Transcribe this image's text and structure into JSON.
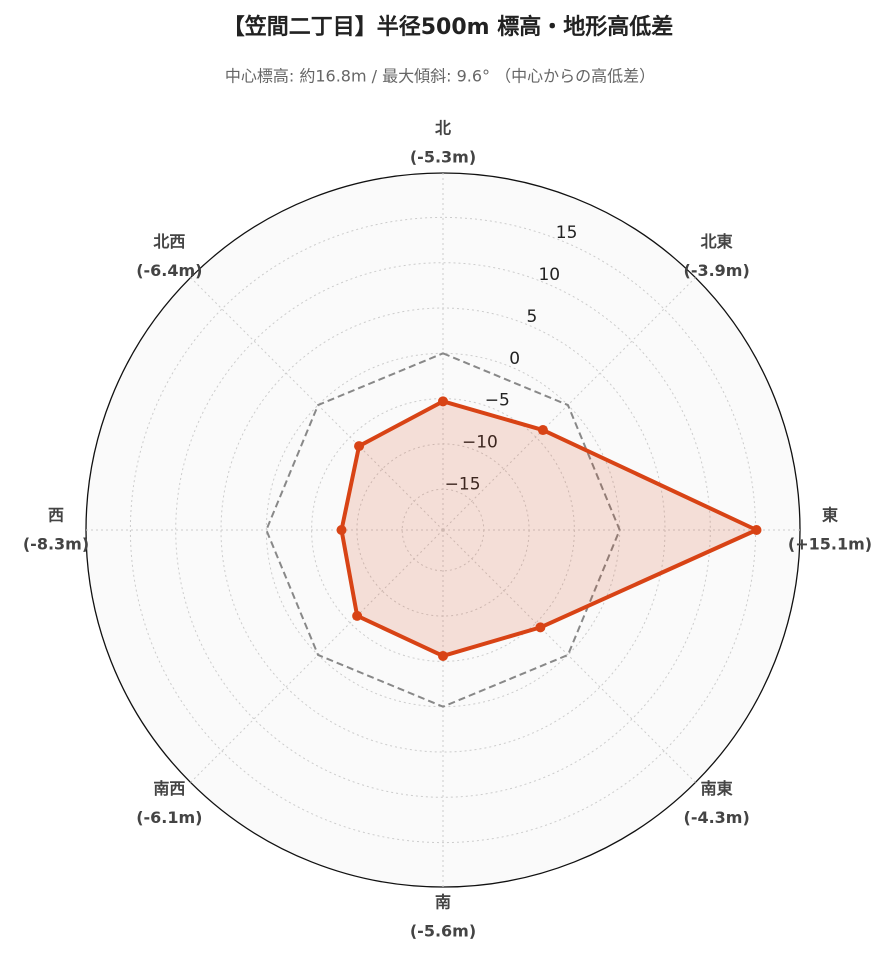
{
  "chart_data": {
    "type": "radar",
    "title": "【笠間二丁目】半径500m 標高・地形高低差",
    "subtitle": "中心標高: 約16.8m / 最大傾斜: 9.6° （中心からの高低差）",
    "categories": [
      "北",
      "北東",
      "東",
      "南東",
      "南",
      "南西",
      "西",
      "北西"
    ],
    "values": [
      -5.3,
      -3.9,
      15.1,
      -4.3,
      -5.6,
      -6.1,
      -8.3,
      -6.4
    ],
    "value_labels": [
      "(-5.3m)",
      "(-3.9m)",
      "(+15.1m)",
      "(-4.3m)",
      "(-5.6m)",
      "(-6.1m)",
      "(-8.3m)",
      "(-6.4m)"
    ],
    "color": "#d84315",
    "reference_line": 0,
    "ylim": [
      -19.5,
      19.9
    ],
    "yticks": [
      {
        "value": -15,
        "label": "−15"
      },
      {
        "value": -10,
        "label": "−10"
      },
      {
        "value": -5,
        "label": "−5"
      },
      0,
      5,
      10,
      15
    ],
    "grid": true
  }
}
